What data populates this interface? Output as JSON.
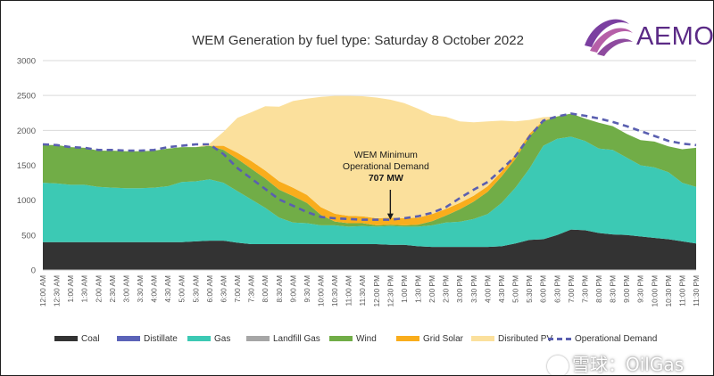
{
  "chart_data": {
    "type": "area",
    "title": "WEM Generation by fuel type: Saturday 8 October 2022",
    "ylim": [
      0,
      3000
    ],
    "yticks": [
      "3000",
      "2500",
      "2000",
      "1500",
      "1000",
      "500",
      "0"
    ],
    "grid": true,
    "legend_position": "bottom",
    "categories": [
      "12:00 AM",
      "12:30 AM",
      "1:00 AM",
      "1:30 AM",
      "2:00 AM",
      "2:30 AM",
      "3:00 AM",
      "3:30 AM",
      "4:00 AM",
      "4:30 AM",
      "5:00 AM",
      "5:30 AM",
      "6:00 AM",
      "6:30 AM",
      "7:00 AM",
      "7:30 AM",
      "8:00 AM",
      "8:30 AM",
      "9:00 AM",
      "9:30 AM",
      "10:00 AM",
      "10:30 AM",
      "11:00 AM",
      "11:30 AM",
      "12:00 PM",
      "12:30 PM",
      "1:00 PM",
      "1:30 PM",
      "2:00 PM",
      "2:30 PM",
      "3:00 PM",
      "3:30 PM",
      "4:00 PM",
      "4:30 PM",
      "5:00 PM",
      "5:30 PM",
      "6:00 PM",
      "6:30 PM",
      "7:00 PM",
      "7:30 PM",
      "8:00 PM",
      "8:30 PM",
      "9:00 PM",
      "9:30 PM",
      "10:00 PM",
      "10:30 PM",
      "11:00 PM",
      "11:30 PM"
    ],
    "series": [
      {
        "name": "Coal",
        "color": "#333333",
        "values": [
          400,
          400,
          400,
          400,
          400,
          400,
          400,
          400,
          400,
          400,
          400,
          410,
          420,
          420,
          390,
          370,
          370,
          370,
          370,
          370,
          370,
          370,
          370,
          370,
          370,
          360,
          360,
          340,
          330,
          330,
          330,
          330,
          330,
          340,
          380,
          430,
          440,
          500,
          580,
          570,
          530,
          510,
          500,
          480,
          460,
          440,
          410,
          380
        ]
      },
      {
        "name": "Distillate",
        "color": "#5b63b8",
        "values": [
          0,
          0,
          0,
          0,
          0,
          0,
          0,
          0,
          0,
          0,
          0,
          0,
          0,
          0,
          0,
          0,
          0,
          0,
          0,
          0,
          0,
          0,
          0,
          0,
          0,
          0,
          0,
          0,
          0,
          0,
          0,
          0,
          0,
          0,
          0,
          0,
          0,
          0,
          0,
          0,
          0,
          0,
          0,
          0,
          0,
          0,
          0,
          0
        ]
      },
      {
        "name": "Gas",
        "color": "#3cc9b4",
        "values": [
          850,
          840,
          820,
          820,
          790,
          780,
          770,
          770,
          780,
          800,
          860,
          860,
          880,
          830,
          740,
          640,
          520,
          380,
          310,
          300,
          270,
          270,
          250,
          260,
          250,
          270,
          260,
          280,
          310,
          350,
          360,
          400,
          470,
          620,
          800,
          1020,
          1340,
          1380,
          1330,
          1280,
          1210,
          1210,
          1110,
          1020,
          1010,
          960,
          840,
          810
        ]
      },
      {
        "name": "Landfill Gas",
        "color": "#a6a6a6",
        "values": [
          0,
          0,
          0,
          0,
          0,
          0,
          0,
          0,
          0,
          0,
          0,
          0,
          0,
          0,
          0,
          0,
          0,
          0,
          0,
          0,
          0,
          0,
          0,
          0,
          0,
          0,
          0,
          0,
          0,
          0,
          0,
          0,
          0,
          0,
          0,
          0,
          0,
          0,
          0,
          0,
          0,
          0,
          0,
          0,
          0,
          0,
          0,
          0
        ]
      },
      {
        "name": "Wind",
        "color": "#71ad47",
        "values": [
          540,
          550,
          540,
          530,
          520,
          530,
          530,
          530,
          530,
          540,
          500,
          490,
          480,
          470,
          460,
          440,
          420,
          400,
          380,
          290,
          150,
          55,
          50,
          40,
          20,
          20,
          20,
          30,
          60,
          100,
          180,
          250,
          320,
          380,
          410,
          460,
          350,
          320,
          330,
          320,
          370,
          340,
          340,
          360,
          370,
          370,
          480,
          560
        ]
      },
      {
        "name": "Grid Solar",
        "color": "#f9ad1c",
        "values": [
          0,
          0,
          0,
          0,
          0,
          0,
          0,
          0,
          0,
          0,
          0,
          0,
          0,
          60,
          90,
          110,
          115,
          120,
          120,
          115,
          110,
          110,
          105,
          100,
          100,
          100,
          100,
          100,
          100,
          95,
          90,
          85,
          80,
          70,
          60,
          40,
          10,
          0,
          0,
          0,
          0,
          0,
          0,
          0,
          0,
          0,
          0,
          0
        ]
      },
      {
        "name": "Disributed PV",
        "color": "#fbe09c",
        "values": [
          0,
          0,
          0,
          0,
          0,
          0,
          0,
          0,
          0,
          0,
          0,
          0,
          30,
          200,
          500,
          700,
          920,
          1070,
          1240,
          1380,
          1580,
          1690,
          1720,
          1720,
          1730,
          1690,
          1650,
          1560,
          1420,
          1320,
          1170,
          1050,
          930,
          730,
          480,
          200,
          50,
          0,
          0,
          0,
          0,
          0,
          0,
          0,
          0,
          0,
          0,
          0
        ]
      },
      {
        "name": "Operational Demand",
        "color": "#5a5fb0",
        "dashed": true,
        "values": [
          1800,
          1790,
          1760,
          1750,
          1720,
          1720,
          1710,
          1710,
          1720,
          1760,
          1780,
          1800,
          1800,
          1660,
          1460,
          1310,
          1160,
          1010,
          920,
          830,
          760,
          740,
          730,
          720,
          720,
          720,
          740,
          770,
          820,
          900,
          1030,
          1150,
          1260,
          1440,
          1630,
          1910,
          2140,
          2200,
          2240,
          2210,
          2170,
          2120,
          2060,
          1990,
          1920,
          1850,
          1810,
          1790
        ]
      }
    ],
    "annotation": {
      "line1": "WEM Minimum",
      "line2": "Operational Demand",
      "line3": "707 MW",
      "at_category": "12:30 PM",
      "at_value": 707
    }
  },
  "logo": {
    "text": "AEMO",
    "icon": "aemo-swirl-icon",
    "color": "#5b2a86"
  },
  "watermark": {
    "text": "雪球：OilGas",
    "icon": "snowball-icon"
  }
}
